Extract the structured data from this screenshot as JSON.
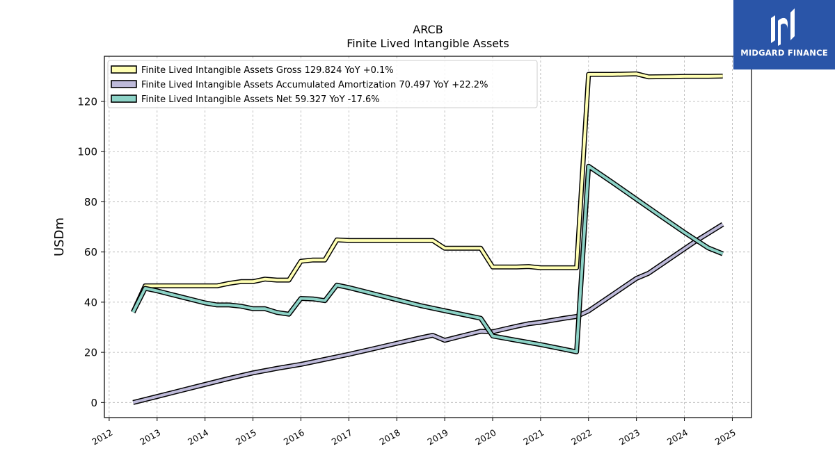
{
  "chart_data": {
    "type": "line",
    "title": "ARCB",
    "subtitle": "Finite Lived Intangible Assets",
    "ylabel": "USDm",
    "xlabel": "",
    "xlim": [
      2011.9,
      2025.4
    ],
    "ylim": [
      -6,
      138
    ],
    "x_ticks": [
      "2012",
      "2013",
      "2014",
      "2015",
      "2016",
      "2017",
      "2018",
      "2019",
      "2020",
      "2021",
      "2022",
      "2023",
      "2024",
      "2025"
    ],
    "y_ticks": [
      0,
      20,
      40,
      60,
      80,
      100,
      120
    ],
    "grid": true,
    "legend_position": "top-left",
    "series": [
      {
        "name": "Finite Lived Intangible Assets Gross",
        "legend": "Finite Lived Intangible Assets Gross  129.824 YoY +0.1%",
        "color": "#ffffb3",
        "points": [
          [
            2012.5,
            36.0
          ],
          [
            2012.75,
            46.5
          ],
          [
            2013.0,
            46.5
          ],
          [
            2013.25,
            46.5
          ],
          [
            2013.5,
            46.5
          ],
          [
            2013.75,
            46.5
          ],
          [
            2014.0,
            46.5
          ],
          [
            2014.25,
            46.5
          ],
          [
            2014.5,
            47.5
          ],
          [
            2014.75,
            48.2
          ],
          [
            2015.0,
            48.2
          ],
          [
            2015.25,
            49.2
          ],
          [
            2015.5,
            48.8
          ],
          [
            2015.75,
            48.8
          ],
          [
            2016.0,
            56.3
          ],
          [
            2016.25,
            56.8
          ],
          [
            2016.5,
            56.8
          ],
          [
            2016.75,
            64.8
          ],
          [
            2017.0,
            64.6
          ],
          [
            2017.5,
            64.6
          ],
          [
            2018.0,
            64.6
          ],
          [
            2018.5,
            64.6
          ],
          [
            2018.75,
            64.6
          ],
          [
            2019.0,
            61.5
          ],
          [
            2019.25,
            61.5
          ],
          [
            2019.5,
            61.5
          ],
          [
            2019.75,
            61.5
          ],
          [
            2020.0,
            54.0
          ],
          [
            2020.25,
            54.0
          ],
          [
            2020.5,
            54.0
          ],
          [
            2020.75,
            54.2
          ],
          [
            2021.0,
            53.7
          ],
          [
            2021.25,
            53.7
          ],
          [
            2021.5,
            53.7
          ],
          [
            2021.75,
            53.7
          ],
          [
            2022.0,
            130.8
          ],
          [
            2022.5,
            130.8
          ],
          [
            2023.0,
            131.0
          ],
          [
            2023.25,
            129.8
          ],
          [
            2023.75,
            129.9
          ],
          [
            2024.0,
            130.0
          ],
          [
            2024.5,
            130.0
          ],
          [
            2024.8,
            130.1
          ]
        ]
      },
      {
        "name": "Finite Lived Intangible Assets Accumulated Amortization",
        "legend": "Finite Lived Intangible Assets Accumulated Amortization  70.497 YoY +22.2%",
        "color": "#bebada",
        "points": [
          [
            2012.5,
            0.0
          ],
          [
            2013.0,
            2.4
          ],
          [
            2013.5,
            4.8
          ],
          [
            2014.0,
            7.2
          ],
          [
            2014.5,
            9.6
          ],
          [
            2015.0,
            11.8
          ],
          [
            2015.5,
            13.6
          ],
          [
            2016.0,
            15.2
          ],
          [
            2016.5,
            17.2
          ],
          [
            2017.0,
            19.2
          ],
          [
            2017.5,
            21.4
          ],
          [
            2018.0,
            23.6
          ],
          [
            2018.5,
            25.8
          ],
          [
            2018.75,
            26.8
          ],
          [
            2019.0,
            24.8
          ],
          [
            2019.25,
            26.0
          ],
          [
            2019.5,
            27.2
          ],
          [
            2019.75,
            28.4
          ],
          [
            2020.0,
            28.2
          ],
          [
            2020.25,
            29.3
          ],
          [
            2020.5,
            30.4
          ],
          [
            2020.75,
            31.4
          ],
          [
            2021.0,
            32.0
          ],
          [
            2021.5,
            33.6
          ],
          [
            2021.75,
            34.3
          ],
          [
            2022.0,
            36.5
          ],
          [
            2022.5,
            43.0
          ],
          [
            2023.0,
            49.5
          ],
          [
            2023.25,
            51.5
          ],
          [
            2023.75,
            58.0
          ],
          [
            2024.25,
            64.5
          ],
          [
            2024.8,
            71.0
          ]
        ]
      },
      {
        "name": "Finite Lived Intangible Assets Net",
        "legend": "Finite Lived Intangible Assets Net  59.327 YoY -17.6%",
        "color": "#8dd3c7",
        "points": [
          [
            2012.5,
            36.0
          ],
          [
            2012.75,
            45.5
          ],
          [
            2013.0,
            44.5
          ],
          [
            2013.25,
            43.3
          ],
          [
            2013.5,
            42.1
          ],
          [
            2013.75,
            40.9
          ],
          [
            2014.0,
            39.7
          ],
          [
            2014.25,
            38.9
          ],
          [
            2014.5,
            38.9
          ],
          [
            2014.75,
            38.4
          ],
          [
            2015.0,
            37.4
          ],
          [
            2015.25,
            37.4
          ],
          [
            2015.5,
            35.9
          ],
          [
            2015.75,
            35.2
          ],
          [
            2016.0,
            41.5
          ],
          [
            2016.25,
            41.3
          ],
          [
            2016.5,
            40.6
          ],
          [
            2016.75,
            46.8
          ],
          [
            2017.0,
            45.8
          ],
          [
            2017.5,
            43.4
          ],
          [
            2018.0,
            41.0
          ],
          [
            2018.5,
            38.6
          ],
          [
            2019.0,
            36.6
          ],
          [
            2019.5,
            34.6
          ],
          [
            2019.75,
            33.6
          ],
          [
            2020.0,
            26.5
          ],
          [
            2020.5,
            24.8
          ],
          [
            2021.0,
            23.1
          ],
          [
            2021.5,
            21.2
          ],
          [
            2021.75,
            20.2
          ],
          [
            2022.0,
            94.2
          ],
          [
            2022.5,
            87.7
          ],
          [
            2023.0,
            81.0
          ],
          [
            2023.5,
            74.4
          ],
          [
            2024.0,
            67.8
          ],
          [
            2024.5,
            61.6
          ],
          [
            2024.8,
            59.3
          ]
        ]
      }
    ]
  },
  "logo": {
    "text": "MIDGARD FINANCE",
    "background": "#2a55a8"
  }
}
